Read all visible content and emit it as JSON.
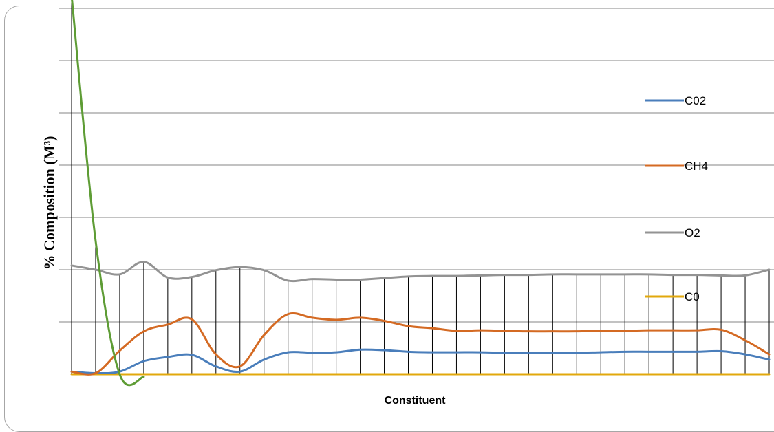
{
  "chart_data": {
    "type": "line",
    "title": "",
    "xlabel": "Constituent",
    "ylabel": "% Composition (M³)",
    "ylim": [
      0,
      7
    ],
    "grid": true,
    "legend_position": "right",
    "n_points": 30,
    "series": [
      {
        "name": "C02",
        "color": "#4a7ebb",
        "values": [
          0.05,
          0.02,
          0.05,
          0.25,
          0.33,
          0.37,
          0.15,
          0.05,
          0.28,
          0.42,
          0.41,
          0.42,
          0.47,
          0.46,
          0.43,
          0.42,
          0.42,
          0.42,
          0.41,
          0.41,
          0.41,
          0.41,
          0.42,
          0.43,
          0.43,
          0.43,
          0.43,
          0.44,
          0.38,
          0.28
        ]
      },
      {
        "name": "CH4",
        "color": "#d46a23",
        "values": [
          0.05,
          0.02,
          0.45,
          0.82,
          0.95,
          1.05,
          0.38,
          0.15,
          0.75,
          1.15,
          1.08,
          1.04,
          1.08,
          1.02,
          0.92,
          0.88,
          0.83,
          0.84,
          0.83,
          0.82,
          0.82,
          0.82,
          0.83,
          0.83,
          0.84,
          0.84,
          0.84,
          0.85,
          0.65,
          0.38
        ]
      },
      {
        "name": "O2",
        "color": "#939393",
        "values": [
          2.08,
          2.0,
          1.91,
          2.15,
          1.85,
          1.86,
          1.99,
          2.05,
          1.99,
          1.79,
          1.82,
          1.81,
          1.81,
          1.84,
          1.87,
          1.88,
          1.88,
          1.89,
          1.9,
          1.9,
          1.91,
          1.91,
          1.91,
          1.91,
          1.91,
          1.9,
          1.9,
          1.89,
          1.89,
          2.0
        ]
      },
      {
        "name": "C0",
        "color": "#e2a80c",
        "values": [
          0,
          0,
          0,
          0,
          0,
          0,
          0,
          0,
          0,
          0,
          0,
          0,
          0,
          0,
          0,
          0,
          0,
          0,
          0,
          0,
          0,
          0,
          0,
          0,
          0,
          0,
          0,
          0,
          0,
          0
        ]
      },
      {
        "name": "",
        "color": "#5e9c35",
        "values": [
          7.25,
          2.55,
          0,
          -0.05
        ]
      }
    ]
  }
}
